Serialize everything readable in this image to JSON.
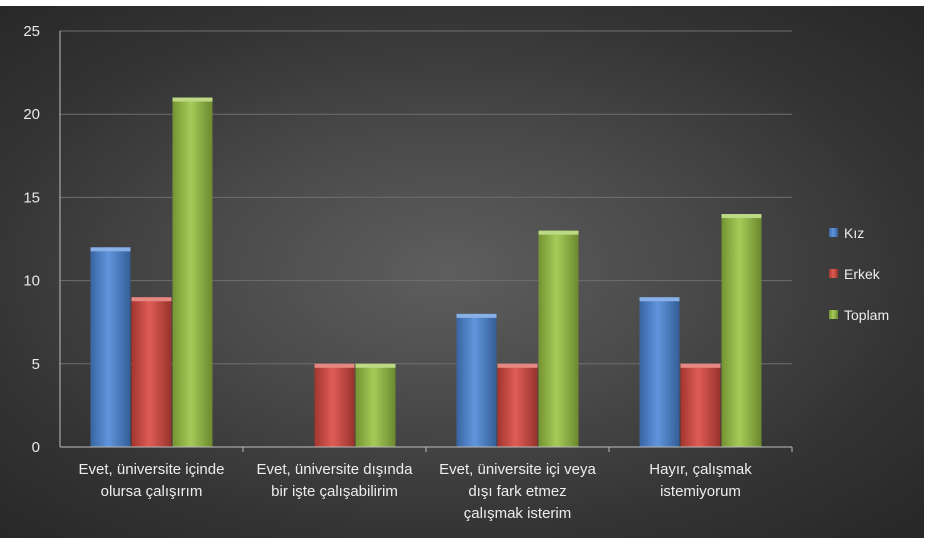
{
  "chart_data": {
    "type": "bar",
    "title": "",
    "xlabel": "",
    "ylabel": "",
    "ylim": [
      0,
      25
    ],
    "yticks": [
      0,
      5,
      10,
      15,
      20,
      25
    ],
    "grid": true,
    "legend_position": "right",
    "categories": [
      [
        "Evet, üniversite içinde",
        "olursa çalışırım"
      ],
      [
        "Evet, üniversite dışında",
        "bir işte çalışabilirim"
      ],
      [
        "Evet, üniversite içi veya",
        "dışı fark etmez",
        "çalışmak isterim"
      ],
      [
        "Hayır, çalışmak",
        "istemiyorum"
      ]
    ],
    "series": [
      {
        "name": "Kız",
        "values": [
          12,
          0,
          8,
          9
        ],
        "color": "#4a86d8"
      },
      {
        "name": "Erkek",
        "values": [
          9,
          5,
          5,
          5
        ],
        "color": "#d9473f"
      },
      {
        "name": "Toplam",
        "values": [
          21,
          5,
          13,
          14
        ],
        "color": "#9ac442"
      }
    ]
  }
}
